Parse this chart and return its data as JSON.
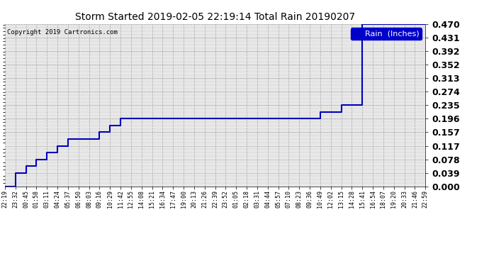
{
  "title": "Storm Started 2019-02-05 22:19:14 Total Rain 20190207",
  "copyright_text": "Copyright 2019 Cartronics.com",
  "legend_label": "Rain  (Inches)",
  "line_color": "#0000bb",
  "background_color": "#ffffff",
  "plot_bg_color": "#e8e8e8",
  "grid_color": "#999999",
  "legend_bg": "#0000cc",
  "legend_fg": "#ffffff",
  "ylim": [
    0.0,
    0.47
  ],
  "yticks": [
    0.0,
    0.039,
    0.078,
    0.117,
    0.157,
    0.196,
    0.235,
    0.274,
    0.313,
    0.352,
    0.392,
    0.431,
    0.47
  ],
  "x_labels": [
    "22:19",
    "23:32",
    "00:45",
    "01:58",
    "03:11",
    "04:24",
    "05:37",
    "06:50",
    "08:03",
    "09:16",
    "10:29",
    "11:42",
    "12:55",
    "14:08",
    "15:21",
    "16:34",
    "17:47",
    "19:00",
    "20:13",
    "21:26",
    "22:39",
    "23:52",
    "01:05",
    "02:18",
    "03:31",
    "04:44",
    "05:57",
    "07:10",
    "08:23",
    "09:36",
    "10:49",
    "12:02",
    "13:15",
    "14:28",
    "15:41",
    "16:54",
    "18:07",
    "19:20",
    "20:33",
    "21:46",
    "22:59"
  ],
  "rain_data_x": [
    0,
    1,
    2,
    3,
    4,
    5,
    6,
    7,
    8,
    9,
    10,
    11,
    12,
    13,
    14,
    15,
    16,
    17,
    18,
    19,
    20,
    21,
    22,
    23,
    24,
    25,
    26,
    27,
    28,
    29,
    30,
    31,
    32,
    33,
    34,
    35,
    36,
    37,
    38,
    39,
    40
  ],
  "rain_data_y": [
    0.0,
    0.039,
    0.059,
    0.078,
    0.098,
    0.117,
    0.137,
    0.137,
    0.137,
    0.157,
    0.176,
    0.196,
    0.196,
    0.196,
    0.196,
    0.196,
    0.196,
    0.196,
    0.196,
    0.196,
    0.196,
    0.196,
    0.196,
    0.196,
    0.196,
    0.196,
    0.196,
    0.196,
    0.196,
    0.196,
    0.215,
    0.215,
    0.235,
    0.235,
    0.47,
    0.47,
    0.47,
    0.47,
    0.47,
    0.47,
    0.47
  ]
}
